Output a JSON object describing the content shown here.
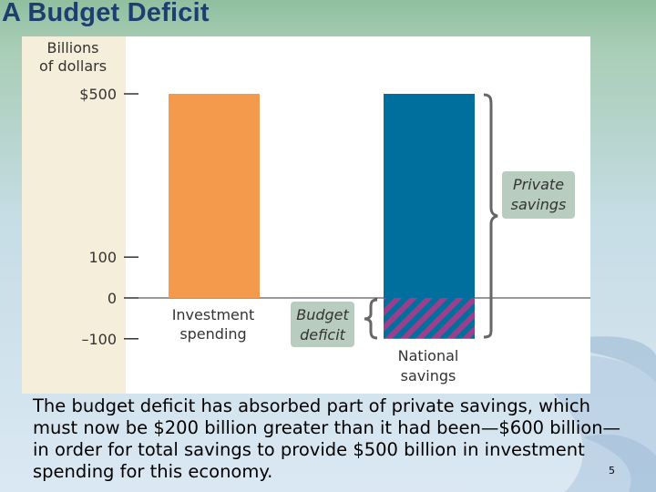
{
  "slide": {
    "title": "A Budget Deficit",
    "caption": "The budget deficit has absorbed part of private savings, which must now be $200 billion greater than it had been—$600 billion—in order for total savings to provide $500 billion in investment spending for this economy.",
    "page_number": "5"
  },
  "colors": {
    "title": "#1f3e70",
    "investment": "#f39a4c",
    "national_savings": "#006f9e",
    "deficit_hatch": "#9b3f8c",
    "label_box": "#b8cdbf",
    "axis_band": "#f5eedb"
  },
  "chart_data": {
    "type": "bar",
    "ylabel": "Billions of dollars",
    "ytick_labels": [
      "$500",
      "100",
      "0",
      "–100"
    ],
    "yticks": [
      500,
      100,
      0,
      -100
    ],
    "ylim": [
      -100,
      500
    ],
    "grid": false,
    "bars": [
      {
        "name": "investment-spending",
        "label": "Investment spending",
        "top": 500,
        "bottom": 0
      },
      {
        "name": "national-savings",
        "label": "National savings",
        "top": 500,
        "bottom": 0,
        "hatched_bottom": -100
      }
    ],
    "annotations": {
      "private_savings": "Private savings",
      "budget_deficit": "Budget deficit"
    }
  }
}
